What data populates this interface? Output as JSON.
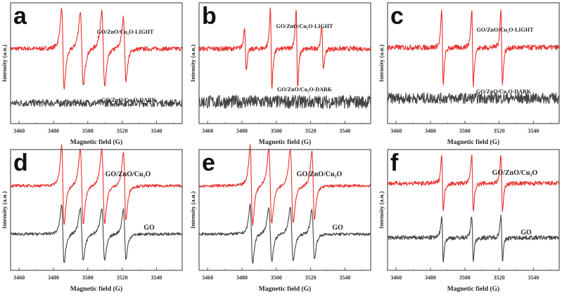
{
  "figure": {
    "panels_layout": "2 rows x 3 columns",
    "colors": {
      "light_or_composite": "#e8322e",
      "dark_or_go": "#444444",
      "frame": "#555555"
    }
  },
  "chart_data": [
    {
      "panel": "a",
      "type": "line",
      "xlabel": "Magnetic field (G)",
      "ylabel": "Intensity (a.u.)",
      "xlim": [
        3455,
        3555
      ],
      "xticks": [
        3460,
        3480,
        3500,
        3520,
        3540
      ],
      "grid": false,
      "series": [
        {
          "name": "GO/ZnO/Cu2O-LIGHT",
          "label": "GO/ZnO/Cu₂O-LIGHT",
          "color": "#e8322e",
          "baseline": 0.62,
          "noise": 0.018,
          "peaks": [
            {
              "x": 3485.5,
              "amp": 0.3,
              "width": 1.3
            },
            {
              "x": 3496.5,
              "amp": 0.28,
              "width": 1.5
            },
            {
              "x": 3509.0,
              "amp": 0.28,
              "width": 1.5
            },
            {
              "x": 3521.5,
              "amp": 0.24,
              "width": 1.3
            }
          ],
          "label_pos": [
            178,
            48
          ]
        },
        {
          "name": "GO/ZnO/Cu2O-DARK",
          "label": "GO/ZnO/Cu₂O-DARK",
          "color": "#444444",
          "baseline": 0.17,
          "noise": 0.03,
          "peaks": [],
          "label_pos": [
            183,
            145
          ]
        }
      ]
    },
    {
      "panel": "b",
      "type": "line",
      "xlabel": "Magnetic field (G)",
      "ylabel": "Intensity (a.u.)",
      "xlim": [
        3455,
        3555
      ],
      "xticks": [
        3460,
        3480,
        3500,
        3520,
        3540
      ],
      "grid": false,
      "series": [
        {
          "name": "GO/ZnO/Cu2O-LIGHT",
          "label": "GO/ZnO/Cu₂O-LIGHT",
          "color": "#e8322e",
          "baseline": 0.62,
          "noise": 0.02,
          "peaks": [
            {
              "x": 3482.0,
              "amp": 0.17,
              "width": 0.8
            },
            {
              "x": 3497.0,
              "amp": 0.3,
              "width": 0.8
            },
            {
              "x": 3512.0,
              "amp": 0.3,
              "width": 0.8
            },
            {
              "x": 3527.0,
              "amp": 0.17,
              "width": 0.8
            }
          ],
          "label_pos": [
            165,
            40
          ]
        },
        {
          "name": "GO/ZnO/Cu2O-DARK",
          "label": "GO/ZnO/Cu₂O-DARK",
          "color": "#444444",
          "baseline": 0.18,
          "noise": 0.055,
          "peaks": [],
          "label_pos": [
            165,
            130
          ]
        }
      ]
    },
    {
      "panel": "c",
      "type": "line",
      "xlabel": "Magnetic field (G)",
      "ylabel": "Intensity (a.u.)",
      "xlim": [
        3455,
        3555
      ],
      "xticks": [
        3460,
        3480,
        3500,
        3520,
        3540
      ],
      "grid": false,
      "series": [
        {
          "name": "GO/ZnO/Cu2O-LIGHT",
          "label": "GO/ZnO/Cu₂O-LIGHT",
          "color": "#e8322e",
          "baseline": 0.63,
          "noise": 0.022,
          "peaks": [
            {
              "x": 3487.0,
              "amp": 0.28,
              "width": 0.8
            },
            {
              "x": 3504.5,
              "amp": 0.28,
              "width": 0.8
            },
            {
              "x": 3521.5,
              "amp": 0.28,
              "width": 0.8
            }
          ],
          "label_pos": [
            182,
            45
          ]
        },
        {
          "name": "GO/ZnO/Cu2O-DARK",
          "label": "GO/ZnO/Cu₂O-DARK",
          "color": "#444444",
          "baseline": 0.21,
          "noise": 0.045,
          "peaks": [],
          "label_pos": [
            180,
            133
          ]
        }
      ]
    },
    {
      "panel": "d",
      "type": "line",
      "xlabel": "Magnetic field (G)",
      "ylabel": "Intensity (a.u.)",
      "xlim": [
        3455,
        3555
      ],
      "xticks": [
        3460,
        3480,
        3500,
        3520,
        3540
      ],
      "grid": false,
      "series": [
        {
          "name": "GO/ZnO/Cu2O",
          "label": "GO/ZnO/Cu₂O",
          "color": "#e8322e",
          "baseline": 0.7,
          "noise": 0.012,
          "peaks": [
            {
              "x": 3485.5,
              "amp": 0.3,
              "width": 1.3
            },
            {
              "x": 3496.5,
              "amp": 0.28,
              "width": 1.5
            },
            {
              "x": 3509.0,
              "amp": 0.28,
              "width": 1.5
            },
            {
              "x": 3521.5,
              "amp": 0.26,
              "width": 1.3
            }
          ],
          "label_pos": [
            182,
            42
          ]
        },
        {
          "name": "GO",
          "label": "GO",
          "color": "#444444",
          "baseline": 0.3,
          "noise": 0.012,
          "peaks": [
            {
              "x": 3485.5,
              "amp": 0.22,
              "width": 1.3
            },
            {
              "x": 3496.5,
              "amp": 0.2,
              "width": 1.5
            },
            {
              "x": 3509.0,
              "amp": 0.2,
              "width": 1.5
            },
            {
              "x": 3521.5,
              "amp": 0.19,
              "width": 1.3
            }
          ],
          "label_pos": [
            212,
            118
          ]
        }
      ]
    },
    {
      "panel": "e",
      "type": "line",
      "xlabel": "Magnetic field (G)",
      "ylabel": "Intensity (a.u.)",
      "xlim": [
        3455,
        3555
      ],
      "xticks": [
        3460,
        3480,
        3500,
        3520,
        3540
      ],
      "grid": false,
      "series": [
        {
          "name": "GO/ZnO/Cu2O",
          "label": "GO/ZnO/Cu₂O",
          "color": "#e8322e",
          "baseline": 0.7,
          "noise": 0.012,
          "peaks": [
            {
              "x": 3485.5,
              "amp": 0.3,
              "width": 1.3
            },
            {
              "x": 3496.5,
              "amp": 0.28,
              "width": 1.5
            },
            {
              "x": 3509.0,
              "amp": 0.28,
              "width": 1.5
            },
            {
              "x": 3521.5,
              "amp": 0.26,
              "width": 1.3
            }
          ],
          "label_pos": [
            186,
            42
          ]
        },
        {
          "name": "GO",
          "label": "GO",
          "color": "#444444",
          "baseline": 0.3,
          "noise": 0.012,
          "peaks": [
            {
              "x": 3485.5,
              "amp": 0.22,
              "width": 1.3
            },
            {
              "x": 3496.5,
              "amp": 0.2,
              "width": 1.5
            },
            {
              "x": 3509.0,
              "amp": 0.2,
              "width": 1.5
            },
            {
              "x": 3521.5,
              "amp": 0.19,
              "width": 1.3
            }
          ],
          "label_pos": [
            212,
            118
          ]
        }
      ]
    },
    {
      "panel": "f",
      "type": "line",
      "xlabel": "Magnetic field (G)",
      "ylabel": "Intensity (a.u.)",
      "xlim": [
        3455,
        3555
      ],
      "xticks": [
        3460,
        3480,
        3500,
        3520,
        3540
      ],
      "grid": false,
      "series": [
        {
          "name": "GO/ZnO/Cu2O",
          "label": "GO/ZnO/Cu₂O",
          "color": "#e8322e",
          "baseline": 0.72,
          "noise": 0.018,
          "peaks": [
            {
              "x": 3487.0,
              "amp": 0.22,
              "width": 0.8
            },
            {
              "x": 3504.5,
              "amp": 0.22,
              "width": 0.8
            },
            {
              "x": 3521.5,
              "amp": 0.22,
              "width": 0.8
            }
          ],
          "label_pos": [
            196,
            40
          ]
        },
        {
          "name": "GO",
          "label": "GO",
          "color": "#444444",
          "baseline": 0.27,
          "noise": 0.018,
          "peaks": [
            {
              "x": 3487.0,
              "amp": 0.17,
              "width": 0.8
            },
            {
              "x": 3504.5,
              "amp": 0.17,
              "width": 0.8
            },
            {
              "x": 3521.5,
              "amp": 0.17,
              "width": 0.8
            }
          ],
          "label_pos": [
            212,
            125
          ]
        }
      ]
    }
  ]
}
